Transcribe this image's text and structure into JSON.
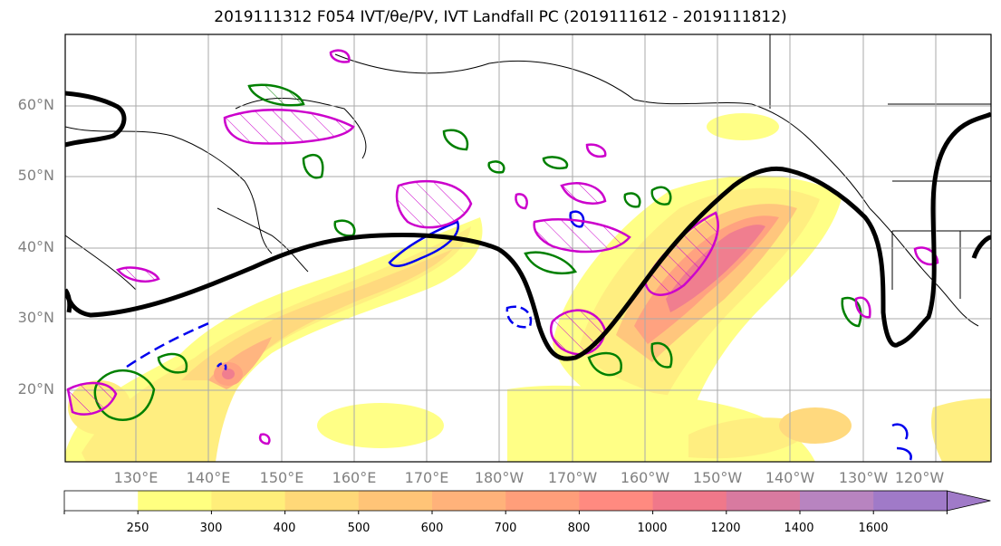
{
  "title": "2019111312 F054 IVT/θe/PV, IVT Landfall PC (2019111612 - 2019111812)",
  "lat_labels": [
    "60°N",
    "50°N",
    "40°N",
    "30°N",
    "20°N"
  ],
  "lon_labels": [
    "130°E",
    "140°E",
    "150°E",
    "160°E",
    "170°E",
    "180°W",
    "170°W",
    "160°W",
    "150°W",
    "140°W",
    "130°W",
    "120°W"
  ],
  "colorbar": {
    "levels": [
      "250",
      "300",
      "400",
      "500",
      "600",
      "700",
      "800",
      "1000",
      "1200",
      "1400",
      "1600"
    ],
    "colors": [
      "#ffffff",
      "#ffff80",
      "#ffee7a",
      "#ffd878",
      "#ffc477",
      "#ffb27a",
      "#ff9e7a",
      "#ff8a80",
      "#f0788a",
      "#d87aa0",
      "#b884c0",
      "#a07ac8"
    ]
  },
  "legend_colors": {
    "theta_e_contour": "#000000",
    "pv_positive": "#cc00cc",
    "pv_negative": "#0000ee",
    "green_contour": "#008000"
  }
}
